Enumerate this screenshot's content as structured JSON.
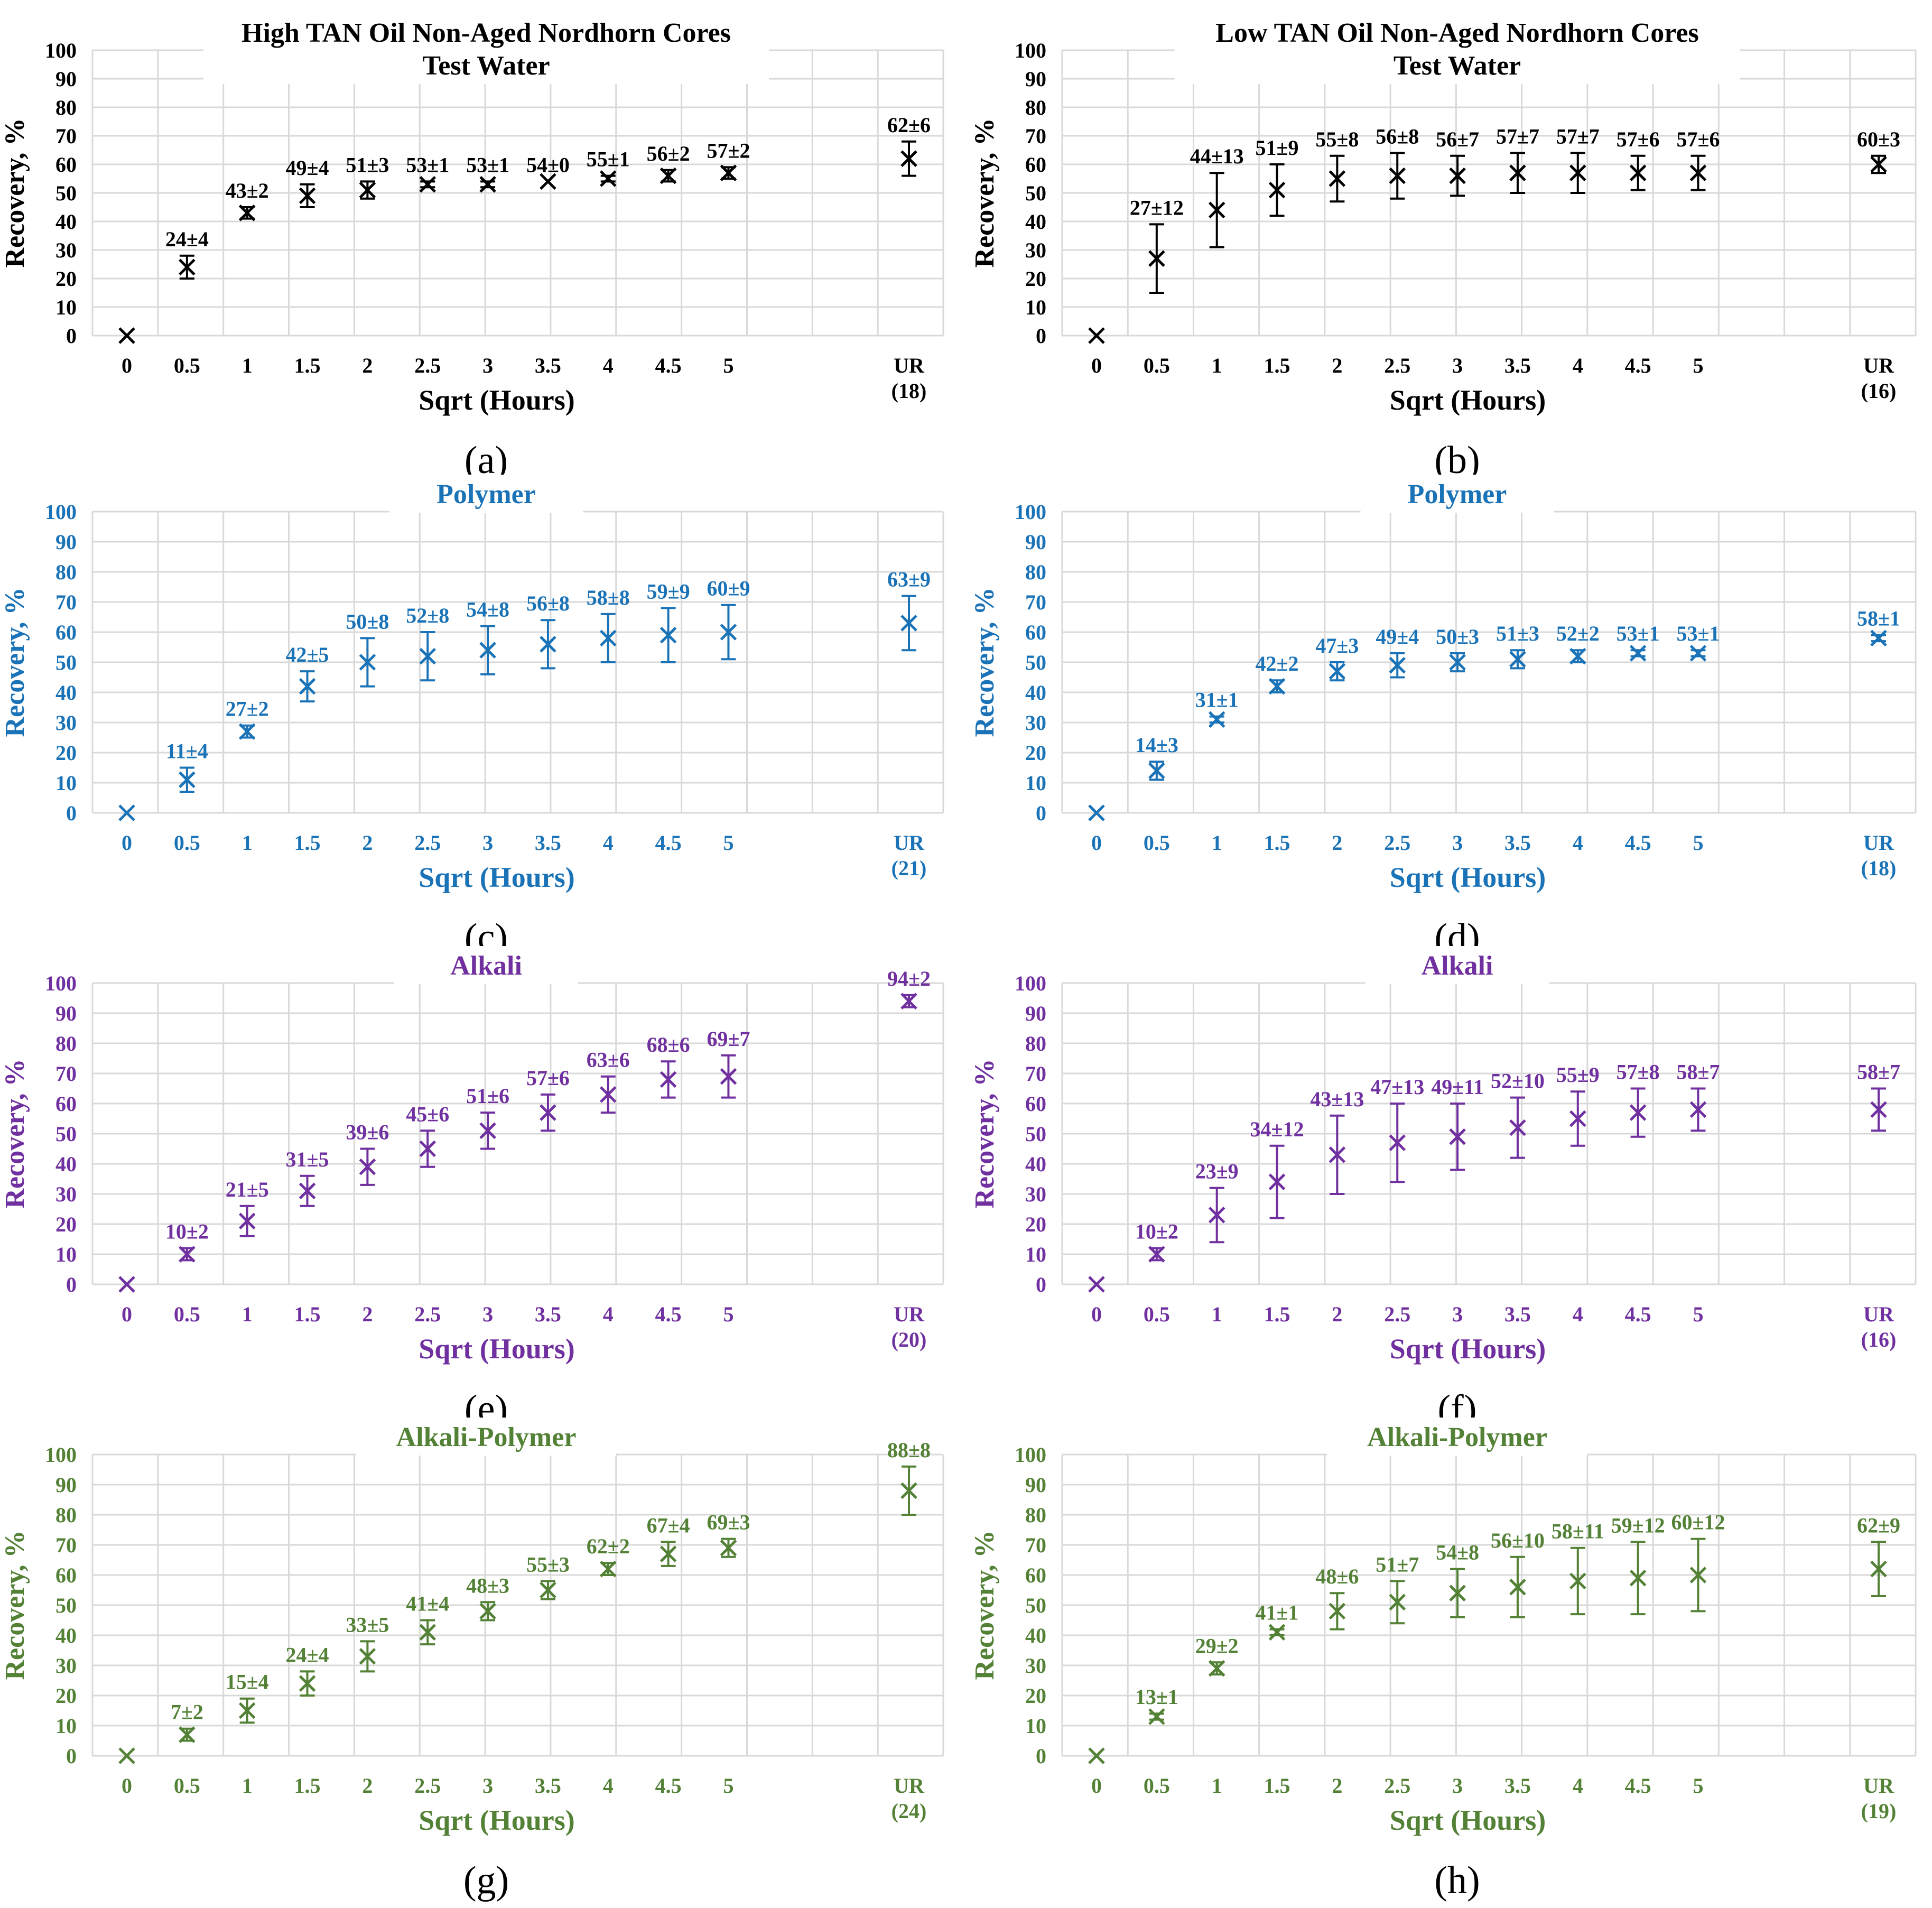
{
  "figure": {
    "column_headers": [
      "High TAN Oil Non-Aged Nordhorn Cores",
      "Low TAN Oil Non-Aged Nordhorn Cores"
    ]
  },
  "chart_data": [
    {
      "panel": "(a)",
      "type": "scatter",
      "title": [
        "High TAN Oil Non-Aged Nordhorn Cores",
        "Test Water"
      ],
      "color": "#000000",
      "xlabel": "Sqrt (Hours)",
      "ylabel": "Recovery, %",
      "ylim": [
        0,
        100
      ],
      "yticks": [
        0,
        10,
        20,
        30,
        40,
        50,
        60,
        70,
        80,
        90,
        100
      ],
      "categories": [
        "0",
        "0.5",
        "1",
        "1.5",
        "2",
        "2.5",
        "3",
        "3.5",
        "4",
        "4.5",
        "5",
        "UR"
      ],
      "ur_count": "(18)",
      "values": [
        0,
        24,
        43,
        49,
        51,
        53,
        53,
        54,
        55,
        56,
        57,
        62
      ],
      "errors": [
        0,
        4,
        2,
        4,
        3,
        1,
        1,
        0,
        1,
        2,
        2,
        6
      ],
      "labels": [
        "",
        "24±4",
        "43±2",
        "49±4",
        "51±3",
        "53±1",
        "53±1",
        "54±0",
        "55±1",
        "56±2",
        "57±2",
        "62±6"
      ]
    },
    {
      "panel": "(b)",
      "type": "scatter",
      "title": [
        "Low TAN Oil Non-Aged Nordhorn Cores",
        "Test Water"
      ],
      "color": "#000000",
      "xlabel": "Sqrt (Hours)",
      "ylabel": "Recovery, %",
      "ylim": [
        0,
        100
      ],
      "yticks": [
        0,
        10,
        20,
        30,
        40,
        50,
        60,
        70,
        80,
        90,
        100
      ],
      "categories": [
        "0",
        "0.5",
        "1",
        "1.5",
        "2",
        "2.5",
        "3",
        "3.5",
        "4",
        "4.5",
        "5",
        "UR"
      ],
      "ur_count": "(16)",
      "values": [
        0,
        27,
        44,
        51,
        55,
        56,
        56,
        57,
        57,
        57,
        57,
        60
      ],
      "errors": [
        0,
        12,
        13,
        9,
        8,
        8,
        7,
        7,
        7,
        6,
        6,
        3
      ],
      "labels": [
        "",
        "27±12",
        "44±13",
        "51±9",
        "55±8",
        "56±8",
        "56±7",
        "57±7",
        "57±7",
        "57±6",
        "57±6",
        "60±3"
      ]
    },
    {
      "panel": "(c)",
      "type": "scatter",
      "title": [
        "Polymer"
      ],
      "color": "#1b73b7",
      "xlabel": "Sqrt (Hours)",
      "ylabel": "Recovery, %",
      "ylim": [
        0,
        100
      ],
      "yticks": [
        0,
        10,
        20,
        30,
        40,
        50,
        60,
        70,
        80,
        90,
        100
      ],
      "categories": [
        "0",
        "0.5",
        "1",
        "1.5",
        "2",
        "2.5",
        "3",
        "3.5",
        "4",
        "4.5",
        "5",
        "UR"
      ],
      "ur_count": "(21)",
      "values": [
        0,
        11,
        27,
        42,
        50,
        52,
        54,
        56,
        58,
        59,
        60,
        63
      ],
      "errors": [
        0,
        4,
        2,
        5,
        8,
        8,
        8,
        8,
        8,
        9,
        9,
        9
      ],
      "labels": [
        "",
        "11±4",
        "27±2",
        "42±5",
        "50±8",
        "52±8",
        "54±8",
        "56±8",
        "58±8",
        "59±9",
        "60±9",
        "63±9"
      ]
    },
    {
      "panel": "(d)",
      "type": "scatter",
      "title": [
        "Polymer"
      ],
      "color": "#1b73b7",
      "xlabel": "Sqrt (Hours)",
      "ylabel": "Recovery, %",
      "ylim": [
        0,
        100
      ],
      "yticks": [
        0,
        10,
        20,
        30,
        40,
        50,
        60,
        70,
        80,
        90,
        100
      ],
      "categories": [
        "0",
        "0.5",
        "1",
        "1.5",
        "2",
        "2.5",
        "3",
        "3.5",
        "4",
        "4.5",
        "5",
        "UR"
      ],
      "ur_count": "(18)",
      "values": [
        0,
        14,
        31,
        42,
        47,
        49,
        50,
        51,
        52,
        53,
        53,
        58
      ],
      "errors": [
        0,
        3,
        1,
        2,
        3,
        4,
        3,
        3,
        2,
        1,
        1,
        1
      ],
      "labels": [
        "",
        "14±3",
        "31±1",
        "42±2",
        "47±3",
        "49±4",
        "50±3",
        "51±3",
        "52±2",
        "53±1",
        "53±1",
        "58±1"
      ]
    },
    {
      "panel": "(e)",
      "type": "scatter",
      "title": [
        "Alkali"
      ],
      "color": "#7030a0",
      "xlabel": "Sqrt (Hours)",
      "ylabel": "Recovery, %",
      "ylim": [
        0,
        100
      ],
      "yticks": [
        0,
        10,
        20,
        30,
        40,
        50,
        60,
        70,
        80,
        90,
        100
      ],
      "categories": [
        "0",
        "0.5",
        "1",
        "1.5",
        "2",
        "2.5",
        "3",
        "3.5",
        "4",
        "4.5",
        "5",
        "UR"
      ],
      "ur_count": "(20)",
      "values": [
        0,
        10,
        21,
        31,
        39,
        45,
        51,
        57,
        63,
        68,
        69,
        94
      ],
      "errors": [
        0,
        2,
        5,
        5,
        6,
        6,
        6,
        6,
        6,
        6,
        7,
        2
      ],
      "labels": [
        "",
        "10±2",
        "21±5",
        "31±5",
        "39±6",
        "45±6",
        "51±6",
        "57±6",
        "63±6",
        "68±6",
        "69±7",
        "94±2"
      ]
    },
    {
      "panel": "(f)",
      "type": "scatter",
      "title": [
        "Alkali"
      ],
      "color": "#7030a0",
      "xlabel": "Sqrt (Hours)",
      "ylabel": "Recovery, %",
      "ylim": [
        0,
        100
      ],
      "yticks": [
        0,
        10,
        20,
        30,
        40,
        50,
        60,
        70,
        80,
        90,
        100
      ],
      "categories": [
        "0",
        "0.5",
        "1",
        "1.5",
        "2",
        "2.5",
        "3",
        "3.5",
        "4",
        "4.5",
        "5",
        "UR"
      ],
      "ur_count": "(16)",
      "values": [
        0,
        10,
        23,
        34,
        43,
        47,
        49,
        52,
        55,
        57,
        58,
        58
      ],
      "errors": [
        0,
        2,
        9,
        12,
        13,
        13,
        11,
        10,
        9,
        8,
        7,
        7
      ],
      "labels": [
        "",
        "10±2",
        "23±9",
        "34±12",
        "43±13",
        "47±13",
        "49±11",
        "52±10",
        "55±9",
        "57±8",
        "58±7",
        "58±7"
      ]
    },
    {
      "panel": "(g)",
      "type": "scatter",
      "title": [
        "Alkali-Polymer"
      ],
      "color": "#538135",
      "xlabel": "Sqrt (Hours)",
      "ylabel": "Recovery, %",
      "ylim": [
        0,
        100
      ],
      "yticks": [
        0,
        10,
        20,
        30,
        40,
        50,
        60,
        70,
        80,
        90,
        100
      ],
      "categories": [
        "0",
        "0.5",
        "1",
        "1.5",
        "2",
        "2.5",
        "3",
        "3.5",
        "4",
        "4.5",
        "5",
        "UR"
      ],
      "ur_count": "(24)",
      "values": [
        0,
        7,
        15,
        24,
        33,
        41,
        48,
        55,
        62,
        67,
        69,
        88
      ],
      "errors": [
        0,
        2,
        4,
        4,
        5,
        4,
        3,
        3,
        2,
        4,
        3,
        8
      ],
      "labels": [
        "",
        "7±2",
        "15±4",
        "24±4",
        "33±5",
        "41±4",
        "48±3",
        "55±3",
        "62±2",
        "67±4",
        "69±3",
        "88±8"
      ]
    },
    {
      "panel": "(h)",
      "type": "scatter",
      "title": [
        "Alkali-Polymer"
      ],
      "color": "#538135",
      "xlabel": "Sqrt (Hours)",
      "ylabel": "Recovery, %",
      "ylim": [
        0,
        100
      ],
      "yticks": [
        0,
        10,
        20,
        30,
        40,
        50,
        60,
        70,
        80,
        90,
        100
      ],
      "categories": [
        "0",
        "0.5",
        "1",
        "1.5",
        "2",
        "2.5",
        "3",
        "3.5",
        "4",
        "4.5",
        "5",
        "UR"
      ],
      "ur_count": "(19)",
      "values": [
        0,
        13,
        29,
        41,
        48,
        51,
        54,
        56,
        58,
        59,
        60,
        62
      ],
      "errors": [
        0,
        1,
        2,
        1,
        6,
        7,
        8,
        10,
        11,
        12,
        12,
        9
      ],
      "labels": [
        "",
        "13±1",
        "29±2",
        "41±1",
        "48±6",
        "51±7",
        "54±8",
        "56±10",
        "58±11",
        "59±12",
        "60±12",
        "62±9"
      ]
    }
  ]
}
